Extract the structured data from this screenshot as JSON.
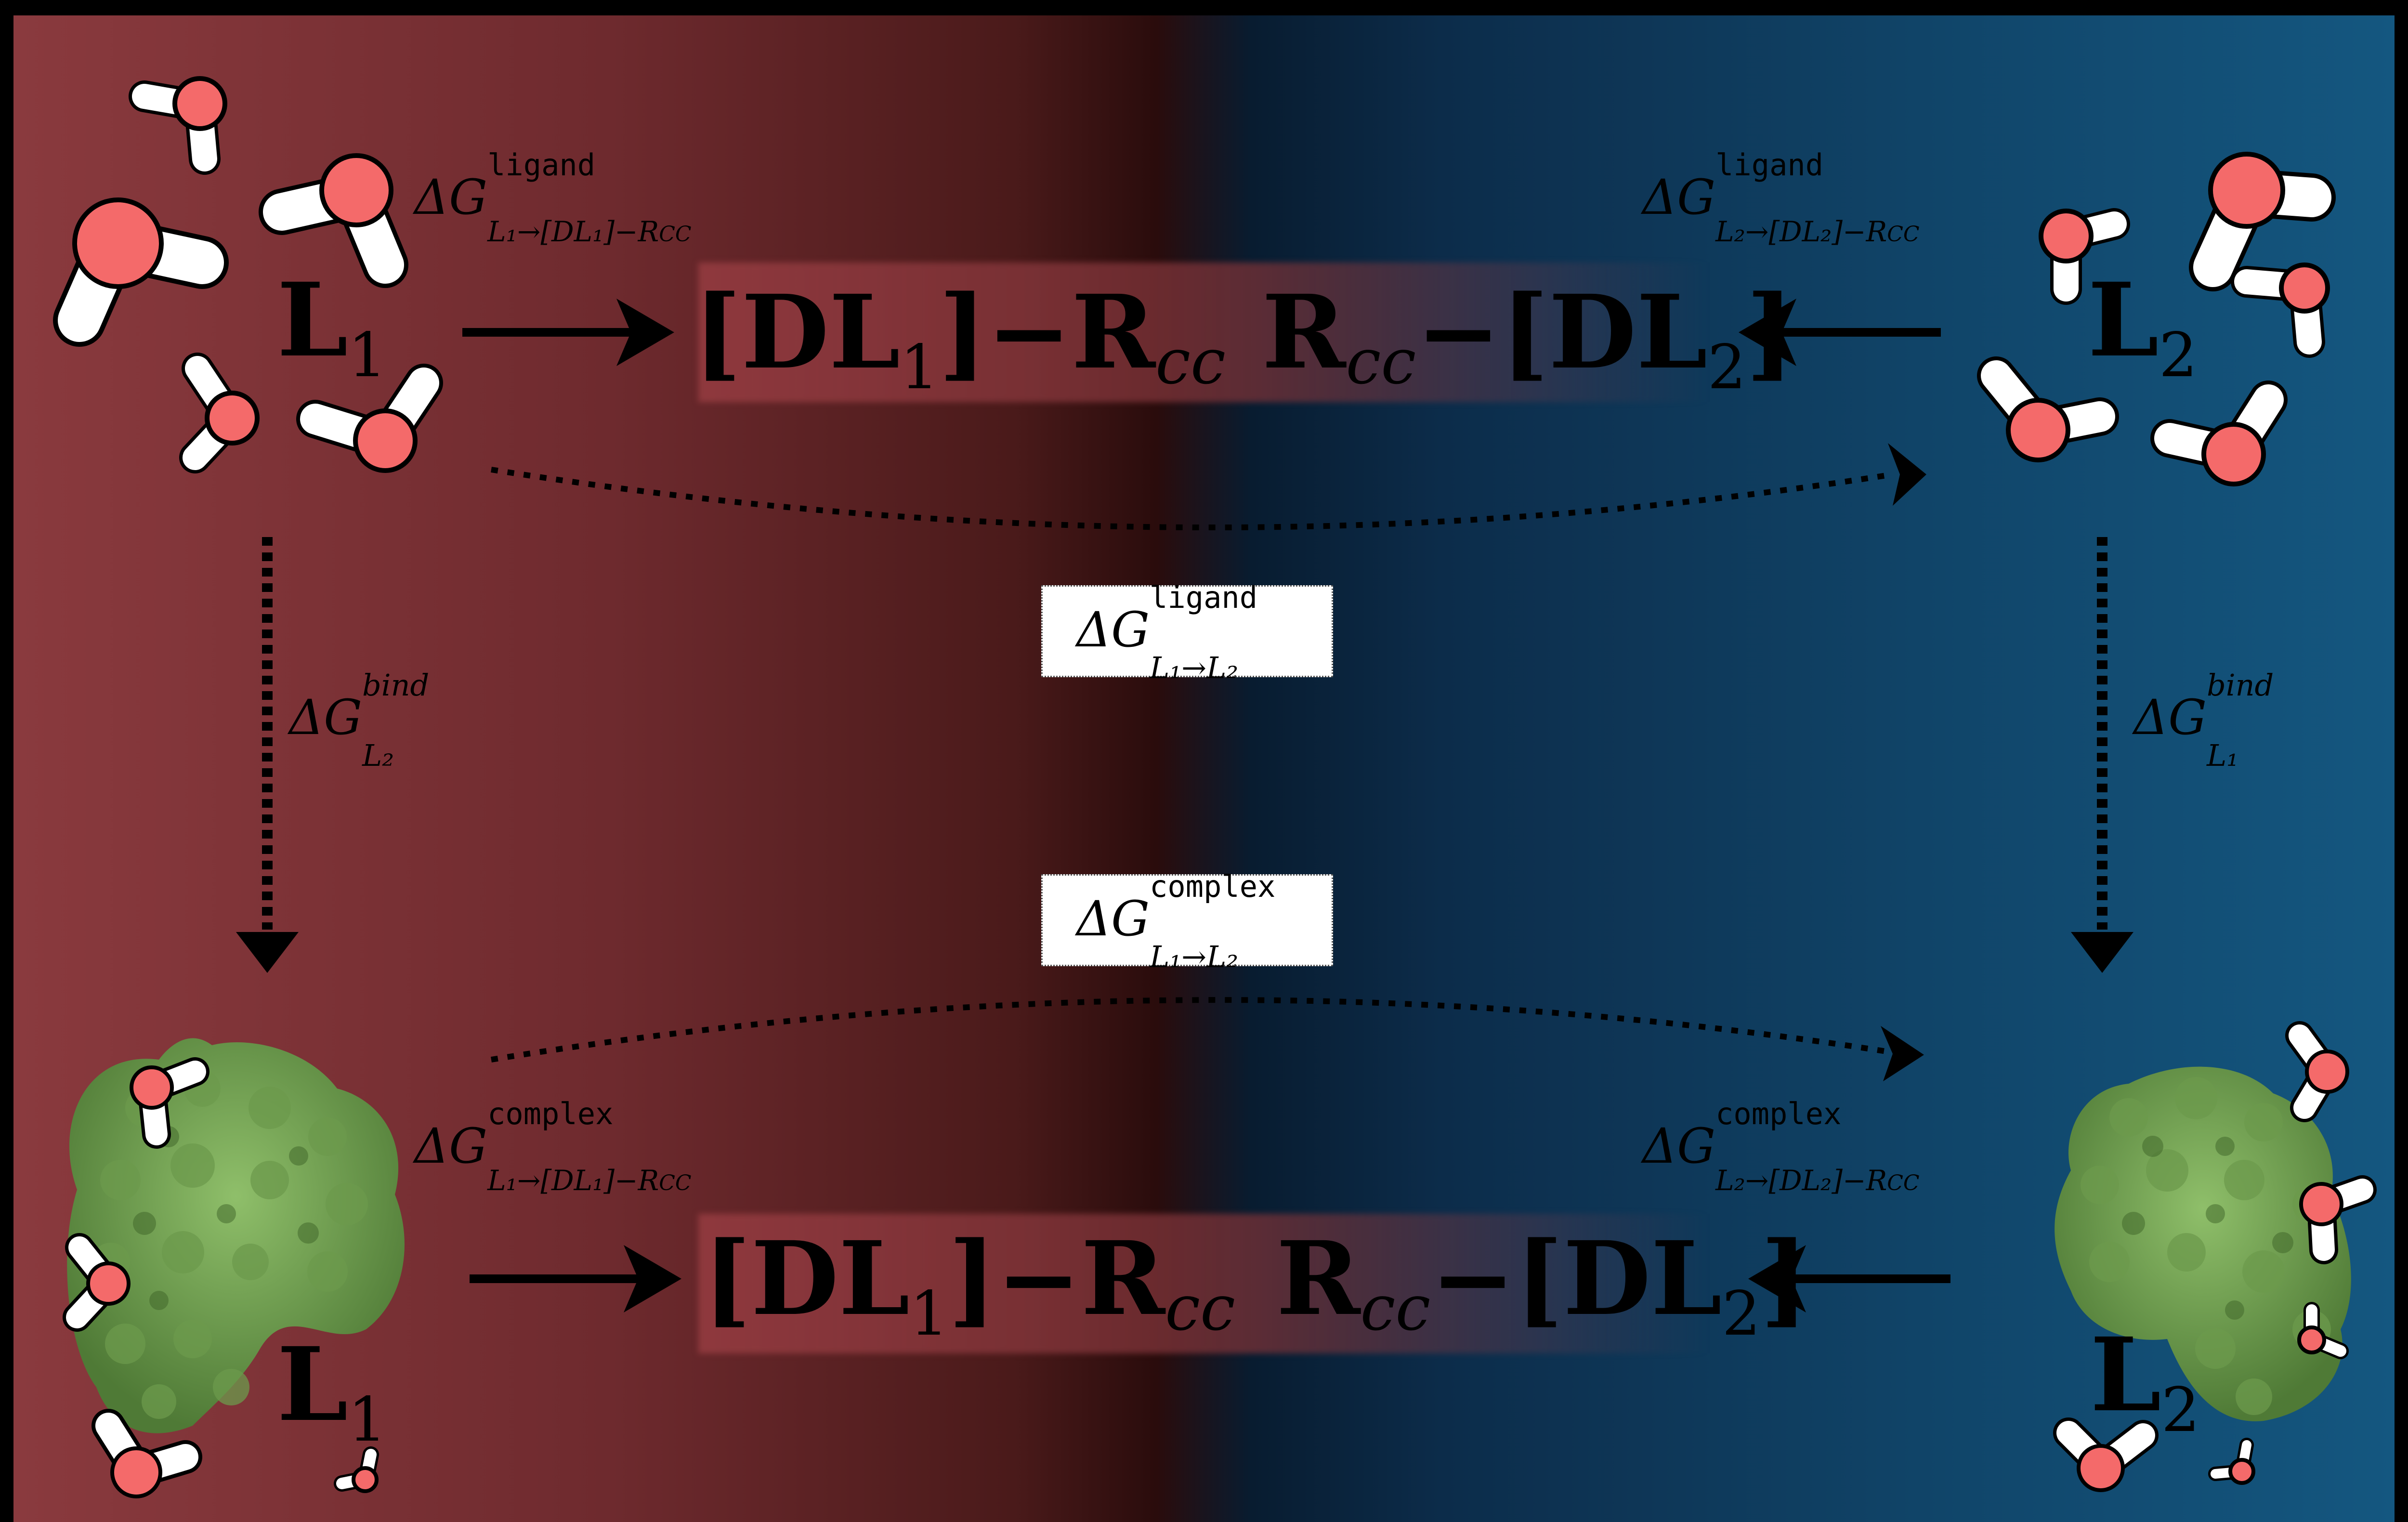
{
  "top": {
    "left_ligand": {
      "base": "L",
      "sub": "1"
    },
    "right_ligand": {
      "base": "L",
      "sub": "2"
    },
    "center_left": {
      "open": "[DL",
      "sub": "1",
      "close": "]−R",
      "tail": "cc"
    },
    "center_right": {
      "head": "R",
      "headsub": "cc",
      "mid": "−[DL",
      "sub": "2",
      "close": "]"
    },
    "label_left": {
      "delta": "ΔG",
      "sup": "ligand",
      "sub": "L₁→[DL₁]−R",
      "subtail": "CC"
    },
    "label_right": {
      "delta": "ΔG",
      "sup": "ligand",
      "sub": "L₂→[DL₂]−R",
      "subtail": "CC"
    }
  },
  "middle": {
    "ligand_box": {
      "delta": "ΔG",
      "sup": "ligand",
      "sub": "L₁→L₂"
    },
    "complex_box": {
      "delta": "ΔG",
      "sup": "complex",
      "sub": "L₁→L₂"
    },
    "bind_left": {
      "delta": "ΔG",
      "sup": "bind",
      "sub": "L₂"
    },
    "bind_right": {
      "delta": "ΔG",
      "sup": "bind",
      "sub": "L₁"
    }
  },
  "bottom": {
    "left_ligand": {
      "base": "L",
      "sub": "1"
    },
    "right_ligand": {
      "base": "L",
      "sub": "2"
    },
    "center_left": {
      "open": "[DL",
      "sub": "1",
      "close": "]−R",
      "tail": "cc"
    },
    "center_right": {
      "head": "R",
      "headsub": "cc",
      "mid": "−[DL",
      "sub": "2",
      "close": "]"
    },
    "label_left": {
      "delta": "ΔG",
      "sup": "complex",
      "sub": "L₁→[DL₁]−R",
      "subtail": "CC"
    },
    "label_right": {
      "delta": "ΔG",
      "sup": "complex",
      "sub": "L₂→[DL₂]−R",
      "subtail": "CC"
    }
  },
  "colors": {
    "left_bg": "#8a3a3e",
    "right_bg": "#145780",
    "oxygen": "#f46a6a",
    "protein": "#6a9a4a"
  }
}
